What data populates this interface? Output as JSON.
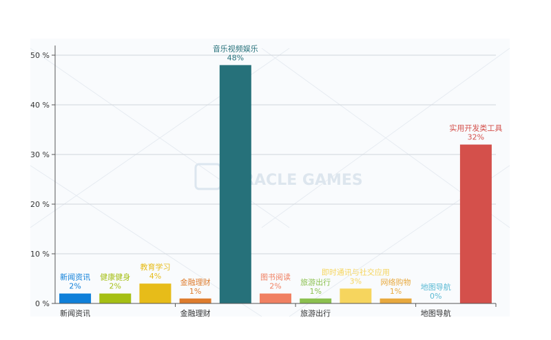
{
  "watermark": "MIRACLE GAMES",
  "chart_data": {
    "type": "bar",
    "categories": [
      "新闻资讯",
      "健康健身",
      "教育学习",
      "金融理财",
      "音乐视频娱乐",
      "图书阅读",
      "旅游出行",
      "即时通讯与社交应用",
      "网络购物",
      "地图导航",
      "实用开发类工具"
    ],
    "values": [
      2,
      2,
      4,
      1,
      48,
      2,
      1,
      3,
      1,
      0,
      32
    ],
    "value_labels": [
      "2%",
      "2%",
      "4%",
      "1%",
      "48%",
      "2%",
      "1%",
      "3%",
      "1%",
      "0%",
      "32%"
    ],
    "colors": [
      "#0e7fd9",
      "#a5bf14",
      "#e7bc19",
      "#de7c2d",
      "#26717a",
      "#f08062",
      "#8bc04f",
      "#f6d55e",
      "#e8a93e",
      "#5bbad4",
      "#d4504b"
    ],
    "x_tick_labels": [
      "新闻资讯",
      "金融理财",
      "旅游出行",
      "地图导航"
    ],
    "y_tick_labels": [
      "0 %",
      "10 %",
      "20 %",
      "30 %",
      "40 %",
      "50 %"
    ],
    "ylim": [
      0,
      50
    ],
    "title": "",
    "xlabel": "",
    "ylabel": "",
    "grid": true
  }
}
